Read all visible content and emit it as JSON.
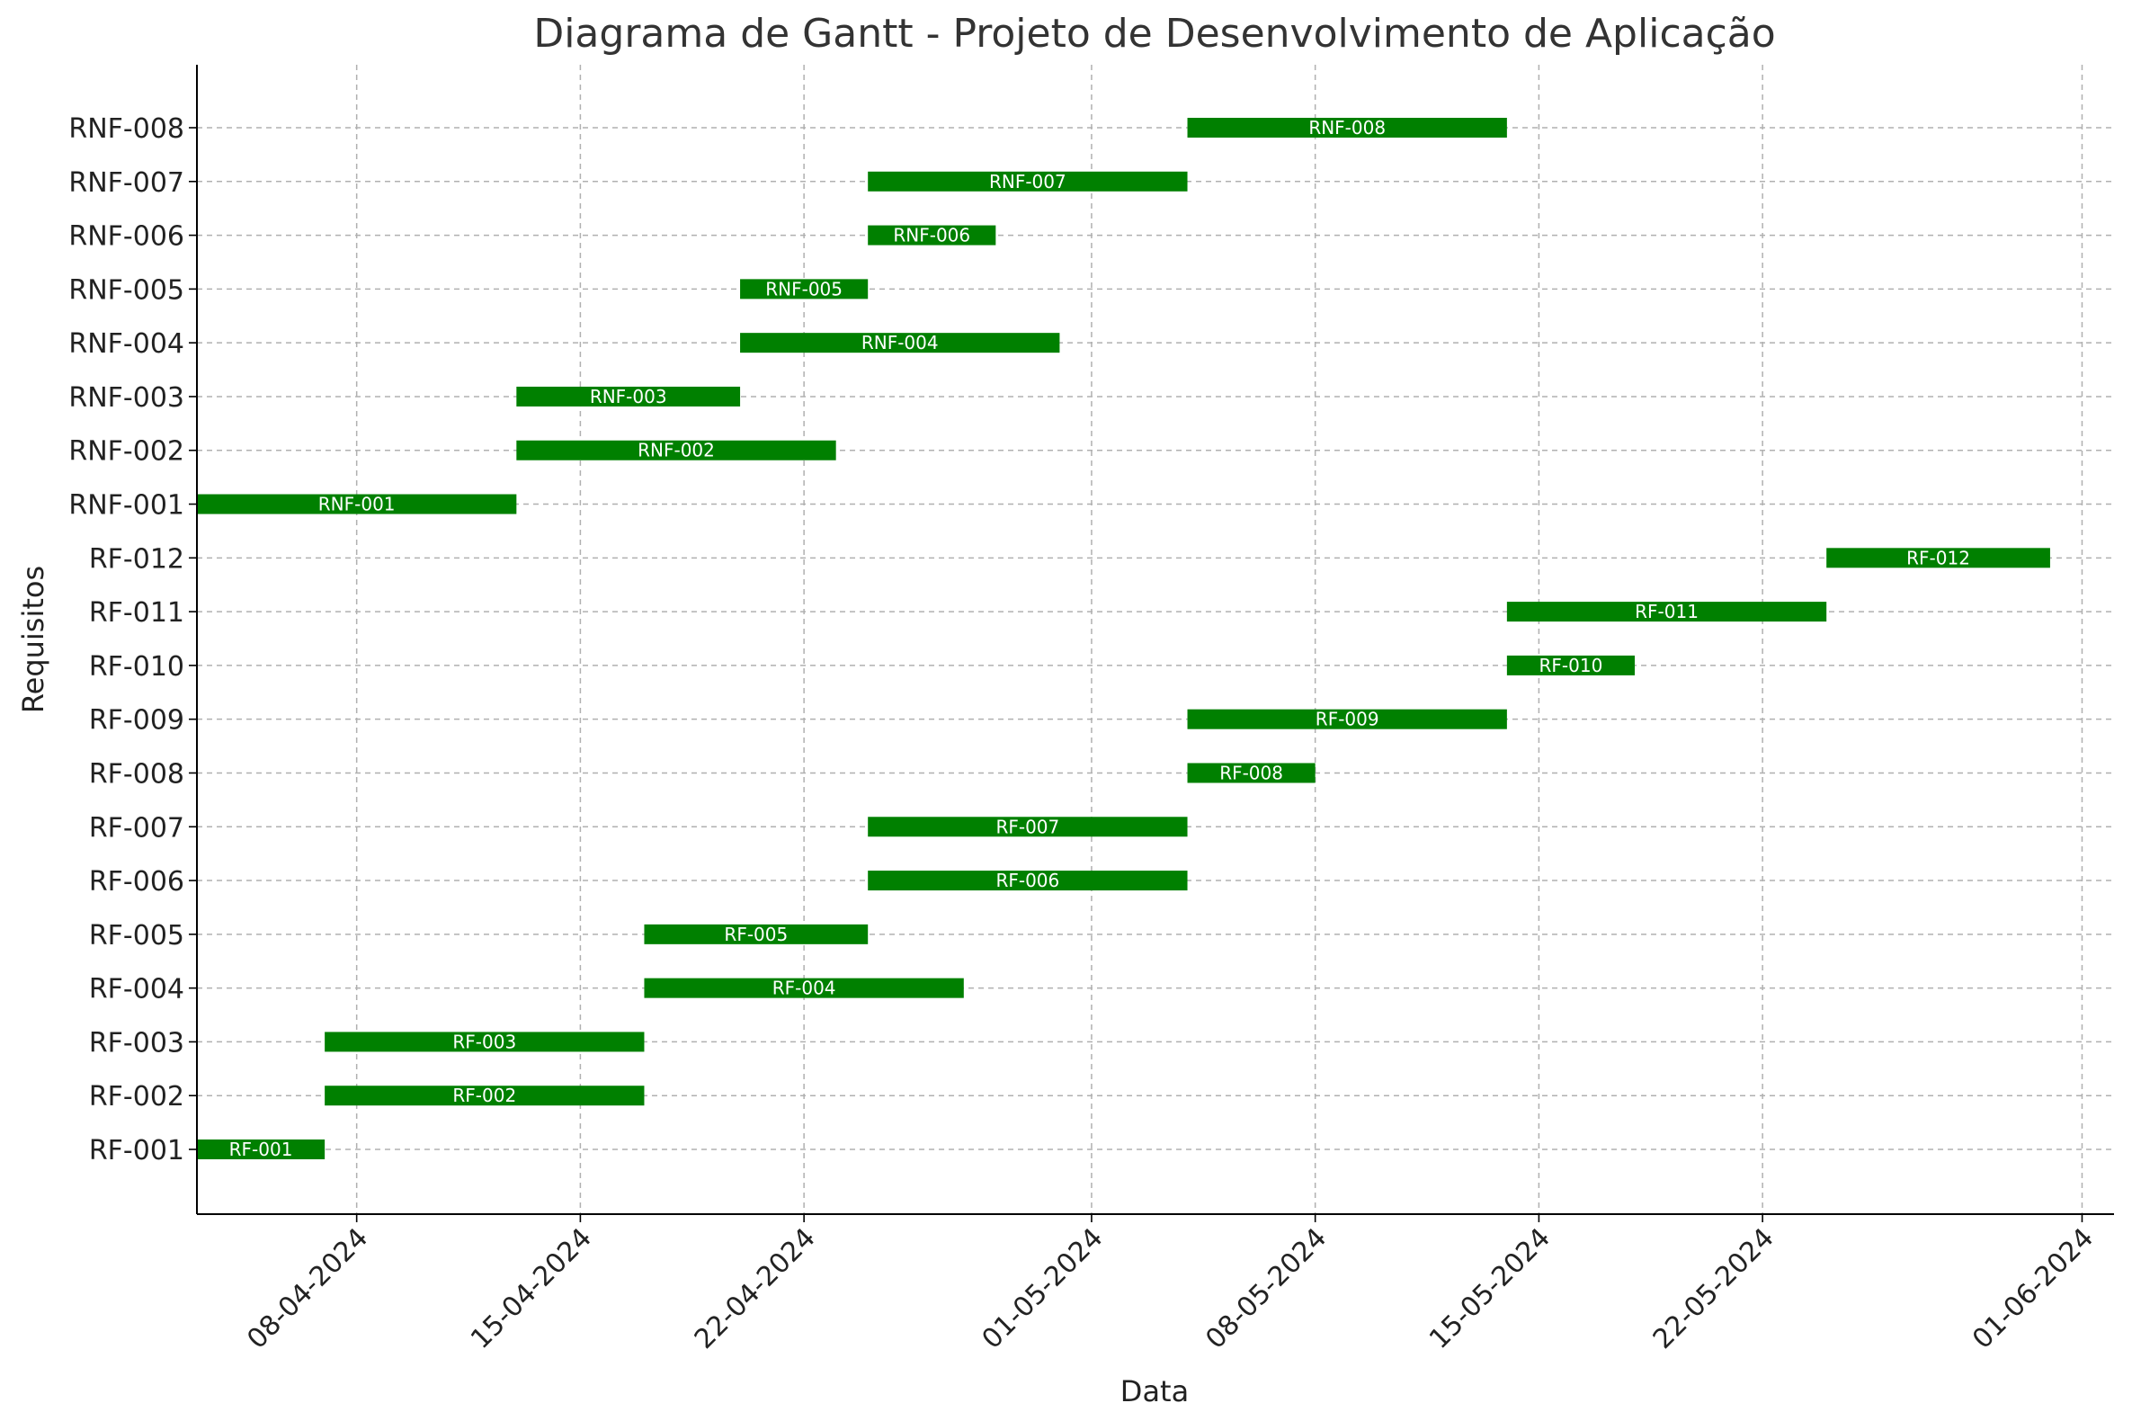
{
  "chart_data": {
    "type": "gantt",
    "title": "Diagrama de Gantt - Projeto de Desenvolvimento de Aplicação",
    "xlabel": "Data",
    "ylabel": "Requisitos",
    "bar_color": "#008000",
    "grid": true,
    "xlim": [
      "2024-04-03",
      "2024-06-02"
    ],
    "x_ticks": [
      {
        "date": "2024-04-08",
        "label": "08-04-2024"
      },
      {
        "date": "2024-04-15",
        "label": "15-04-2024"
      },
      {
        "date": "2024-04-22",
        "label": "22-04-2024"
      },
      {
        "date": "2024-05-01",
        "label": "01-05-2024"
      },
      {
        "date": "2024-05-08",
        "label": "08-05-2024"
      },
      {
        "date": "2024-05-15",
        "label": "15-05-2024"
      },
      {
        "date": "2024-05-22",
        "label": "22-05-2024"
      },
      {
        "date": "2024-06-01",
        "label": "01-06-2024"
      }
    ],
    "tasks": [
      {
        "name": "RF-001",
        "start": "2024-04-03",
        "end": "2024-04-07"
      },
      {
        "name": "RF-002",
        "start": "2024-04-07",
        "end": "2024-04-17"
      },
      {
        "name": "RF-003",
        "start": "2024-04-07",
        "end": "2024-04-17"
      },
      {
        "name": "RF-004",
        "start": "2024-04-17",
        "end": "2024-04-27"
      },
      {
        "name": "RF-005",
        "start": "2024-04-17",
        "end": "2024-04-24"
      },
      {
        "name": "RF-006",
        "start": "2024-04-24",
        "end": "2024-05-04"
      },
      {
        "name": "RF-007",
        "start": "2024-04-24",
        "end": "2024-05-04"
      },
      {
        "name": "RF-008",
        "start": "2024-05-04",
        "end": "2024-05-08"
      },
      {
        "name": "RF-009",
        "start": "2024-05-04",
        "end": "2024-05-14"
      },
      {
        "name": "RF-010",
        "start": "2024-05-14",
        "end": "2024-05-18"
      },
      {
        "name": "RF-011",
        "start": "2024-05-14",
        "end": "2024-05-24"
      },
      {
        "name": "RF-012",
        "start": "2024-05-24",
        "end": "2024-05-31"
      },
      {
        "name": "RNF-001",
        "start": "2024-04-03",
        "end": "2024-04-13"
      },
      {
        "name": "RNF-002",
        "start": "2024-04-13",
        "end": "2024-04-23"
      },
      {
        "name": "RNF-003",
        "start": "2024-04-13",
        "end": "2024-04-20"
      },
      {
        "name": "RNF-004",
        "start": "2024-04-20",
        "end": "2024-04-30"
      },
      {
        "name": "RNF-005",
        "start": "2024-04-20",
        "end": "2024-04-24"
      },
      {
        "name": "RNF-006",
        "start": "2024-04-24",
        "end": "2024-04-28"
      },
      {
        "name": "RNF-007",
        "start": "2024-04-24",
        "end": "2024-05-04"
      },
      {
        "name": "RNF-008",
        "start": "2024-05-04",
        "end": "2024-05-14"
      }
    ]
  }
}
